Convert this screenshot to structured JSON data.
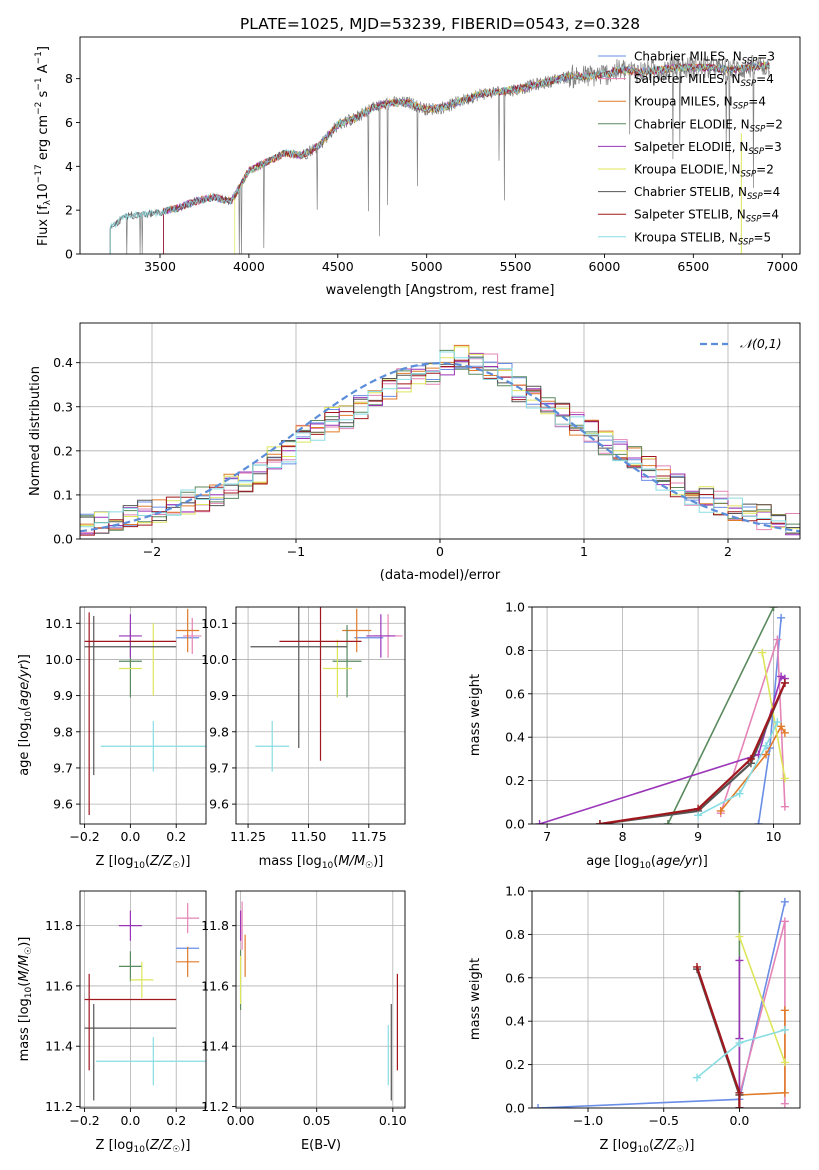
{
  "title": "PLATE=1025, MJD=53239, FIBERID=0543, z=0.328",
  "colors": {
    "Chabrier MILES": "#6a8de6",
    "Salpeter MILES": "#e484b6",
    "Kroupa MILES": "#e07b2a",
    "Chabrier ELODIE": "#5a8a5e",
    "Salpeter ELODIE": "#9b35b8",
    "Kroupa ELODIE": "#dde55a",
    "Chabrier STELIB": "#555555",
    "Salpeter STELIB": "#a0181e",
    "Kroupa STELIB": "#88dde3",
    "normal_curve": "#5b8dd9",
    "spectrum": "#808080"
  },
  "chart_data": [
    {
      "type": "line",
      "title": "PLATE=1025, MJD=53239, FIBERID=0543, z=0.328",
      "xlabel": "wavelength [Angstrom, rest frame]",
      "ylabel": "Flux [f_λ 10^-17 erg cm^-2 s^-1 A^-1]",
      "xlim": [
        3050,
        7100
      ],
      "ylim": [
        0,
        9.9
      ],
      "xticks": [
        3500,
        4000,
        4500,
        5000,
        5500,
        6000,
        6500,
        7000
      ],
      "yticks": [
        0,
        2,
        4,
        6,
        8
      ],
      "legend": [
        {
          "name": "Chabrier MILES",
          "nssp": "3"
        },
        {
          "name": "Salpeter MILES",
          "nssp": "4"
        },
        {
          "name": "Kroupa MILES",
          "nssp": "4"
        },
        {
          "name": "Chabrier ELODIE",
          "nssp": "2"
        },
        {
          "name": "Salpeter ELODIE",
          "nssp": "3"
        },
        {
          "name": "Kroupa ELODIE",
          "nssp": "2"
        },
        {
          "name": "Chabrier STELIB",
          "nssp": "4"
        },
        {
          "name": "Salpeter STELIB",
          "nssp": "4"
        },
        {
          "name": "Kroupa STELIB",
          "nssp": "5"
        }
      ],
      "legend_position": "upper-right",
      "data_x": [
        3220,
        3300,
        3400,
        3500,
        3600,
        3700,
        3800,
        3900,
        4000,
        4100,
        4200,
        4300,
        4400,
        4500,
        4600,
        4700,
        4800,
        4900,
        5000,
        5100,
        5200,
        5300,
        5400,
        5500,
        5600,
        5700,
        5800,
        5900,
        6000,
        6100,
        6200,
        6300,
        6400,
        6500,
        6600,
        6700,
        6800,
        6900,
        7000
      ],
      "data_y": [
        1.2,
        1.7,
        1.8,
        1.9,
        2.1,
        2.4,
        2.6,
        2.4,
        3.8,
        4.2,
        4.6,
        4.5,
        5.0,
        5.9,
        6.2,
        6.7,
        6.9,
        6.9,
        6.6,
        6.7,
        7.0,
        7.3,
        7.4,
        7.5,
        7.7,
        7.9,
        8.1,
        8.1,
        8.2,
        8.4,
        8.3,
        8.4,
        8.5,
        8.5,
        8.5,
        8.4,
        8.5,
        8.6,
        8.5
      ]
    },
    {
      "type": "bar",
      "xlabel": "(data-model)/error",
      "ylabel": "Normed distribution",
      "xlim": [
        -2.5,
        2.5
      ],
      "ylim": [
        0,
        0.49
      ],
      "xticks": [
        -2,
        -1,
        0,
        1,
        2
      ],
      "yticks": [
        0.0,
        0.1,
        0.2,
        0.3,
        0.4
      ],
      "bin_edges_start": -2.5,
      "bin_width": 0.1,
      "grid": true,
      "legend": "𝒩(0,1)",
      "legend_position": "upper-right",
      "series_offsets_note": "",
      "histogram_base": [
        0.03,
        0.035,
        0.045,
        0.05,
        0.06,
        0.065,
        0.07,
        0.085,
        0.09,
        0.1,
        0.12,
        0.13,
        0.15,
        0.18,
        0.2,
        0.23,
        0.25,
        0.27,
        0.28,
        0.3,
        0.32,
        0.34,
        0.36,
        0.37,
        0.38,
        0.4,
        0.41,
        0.4,
        0.39,
        0.37,
        0.34,
        0.32,
        0.3,
        0.28,
        0.26,
        0.24,
        0.22,
        0.2,
        0.18,
        0.16,
        0.14,
        0.12,
        0.1,
        0.09,
        0.08,
        0.07,
        0.06,
        0.05,
        0.04,
        0.035
      ]
    },
    {
      "type": "scatter",
      "xlabel": "Z [log10(Z/Z☉)]",
      "ylabel": "age  [log10(age/yr)]",
      "xlim": [
        -0.22,
        0.33
      ],
      "ylim": [
        9.545,
        10.145
      ],
      "xticks": [
        -0.2,
        0.0,
        0.2
      ],
      "yticks": [
        9.6,
        9.7,
        9.8,
        9.9,
        10.0,
        10.1
      ],
      "points": [
        {
          "series": "Chabrier MILES",
          "x": 0.25,
          "y": 10.06,
          "xerr": 0.05,
          "yerr": 0.0
        },
        {
          "series": "Salpeter MILES",
          "x": 0.27,
          "y": 10.065,
          "xerr": 0.04,
          "yerr": 0.05
        },
        {
          "series": "Kroupa MILES",
          "x": 0.25,
          "y": 10.08,
          "xerr": 0.05,
          "yerr": 0.06
        },
        {
          "series": "Chabrier ELODIE",
          "x": 0.0,
          "y": 9.995,
          "xerr": 0.05,
          "yerr": 0.1
        },
        {
          "series": "Salpeter ELODIE",
          "x": 0.0,
          "y": 10.065,
          "xerr": 0.05,
          "yerr": 0.06
        },
        {
          "series": "Kroupa ELODIE",
          "x": 0.1,
          "y": 10.0,
          "xerr": 0.0,
          "yerr": 0.1
        },
        {
          "series": "Kroupa ELODIE",
          "x": 0.0,
          "y": 9.975,
          "xerr": 0.05,
          "yerr": 0.0
        },
        {
          "series": "Chabrier STELIB",
          "x": 0.0,
          "y": 10.035,
          "xerr": 0.2,
          "yerr": 0.0
        },
        {
          "series": "Chabrier STELIB",
          "x": -0.16,
          "y": 9.9,
          "xerr": 0.0,
          "yerr": 0.22
        },
        {
          "series": "Salpeter STELIB",
          "x": 0.0,
          "y": 10.05,
          "xerr": 0.2,
          "yerr": 0.0
        },
        {
          "series": "Salpeter STELIB",
          "x": -0.18,
          "y": 9.85,
          "xerr": 0.0,
          "yerr": 0.28
        },
        {
          "series": "Kroupa STELIB",
          "x": 0.1,
          "y": 9.76,
          "xerr": 0.23,
          "yerr": 0.07
        }
      ]
    },
    {
      "type": "scatter",
      "xlabel": "mass [log10(M/M☉)]",
      "ylabel": "",
      "xlim": [
        11.2,
        11.9
      ],
      "ylim": [
        9.545,
        10.145
      ],
      "xticks": [
        11.25,
        11.5,
        11.75
      ],
      "yticks": [
        9.6,
        9.7,
        9.8,
        9.9,
        10.0,
        10.1
      ],
      "points": [
        {
          "series": "Chabrier MILES",
          "x": 11.75,
          "y": 10.06,
          "xerr": 0.06,
          "yerr": 0.0
        },
        {
          "series": "Salpeter MILES",
          "x": 11.83,
          "y": 10.065,
          "xerr": 0.06,
          "yerr": 0.06
        },
        {
          "series": "Kroupa MILES",
          "x": 11.7,
          "y": 10.08,
          "xerr": 0.06,
          "yerr": 0.06
        },
        {
          "series": "Chabrier ELODIE",
          "x": 11.66,
          "y": 9.995,
          "xerr": 0.06,
          "yerr": 0.1
        },
        {
          "series": "Salpeter ELODIE",
          "x": 11.8,
          "y": 10.065,
          "xerr": 0.06,
          "yerr": 0.06
        },
        {
          "series": "Kroupa ELODIE",
          "x": 11.62,
          "y": 9.975,
          "xerr": 0.06,
          "yerr": 0.08
        },
        {
          "series": "Chabrier STELIB",
          "x": 11.46,
          "y": 10.035,
          "xerr": 0.2,
          "yerr": 0.28
        },
        {
          "series": "Salpeter STELIB",
          "x": 11.55,
          "y": 10.05,
          "xerr": 0.17,
          "yerr": 0.33
        },
        {
          "series": "Kroupa STELIB",
          "x": 11.35,
          "y": 9.76,
          "xerr": 0.07,
          "yerr": 0.07
        }
      ]
    },
    {
      "type": "line",
      "xlabel": "age  [log10(age/yr)]",
      "ylabel": "mass weight",
      "xlim": [
        6.8,
        10.35
      ],
      "ylim": [
        0,
        1
      ],
      "xticks": [
        7,
        8,
        9,
        10
      ],
      "yticks": [
        0.0,
        0.2,
        0.4,
        0.6,
        0.8,
        1.0
      ],
      "series": [
        {
          "name": "Chabrier MILES",
          "x": [
            9.8,
            9.95,
            10.1
          ],
          "y": [
            0.0,
            0.35,
            0.95
          ]
        },
        {
          "name": "Salpeter MILES",
          "x": [
            9.3,
            10.05,
            10.15
          ],
          "y": [
            0.05,
            0.85,
            0.08
          ]
        },
        {
          "name": "Kroupa MILES",
          "x": [
            9.3,
            9.9,
            10.1,
            10.15
          ],
          "y": [
            0.06,
            0.32,
            0.45,
            0.42
          ]
        },
        {
          "name": "Chabrier ELODIE",
          "x": [
            8.6,
            10.0
          ],
          "y": [
            0.0,
            1.0
          ]
        },
        {
          "name": "Salpeter ELODIE",
          "x": [
            6.9,
            9.8,
            10.1,
            10.15
          ],
          "y": [
            0.0,
            0.32,
            0.68,
            0.67
          ]
        },
        {
          "name": "Kroupa ELODIE",
          "x": [
            9.85,
            10.15
          ],
          "y": [
            0.79,
            0.21
          ]
        },
        {
          "name": "Chabrier STELIB",
          "x": [
            7.7,
            9.0,
            9.7,
            10.15
          ],
          "y": [
            0.0,
            0.06,
            0.28,
            0.65
          ]
        },
        {
          "name": "Salpeter STELIB",
          "x": [
            7.7,
            9.0,
            9.7,
            10.15
          ],
          "y": [
            0.0,
            0.07,
            0.3,
            0.65
          ]
        },
        {
          "name": "Kroupa STELIB",
          "x": [
            9.0,
            9.55,
            9.9,
            10.05
          ],
          "y": [
            0.04,
            0.14,
            0.36,
            0.47
          ]
        }
      ]
    },
    {
      "type": "scatter",
      "xlabel": "Z [log10(Z/Z☉)]",
      "ylabel": "mass [log10(M/M☉)]",
      "xlim": [
        -0.22,
        0.33
      ],
      "ylim": [
        11.195,
        11.915
      ],
      "xticks": [
        -0.2,
        0.0,
        0.2
      ],
      "yticks": [
        11.2,
        11.4,
        11.6,
        11.8
      ],
      "points": [
        {
          "series": "Chabrier MILES",
          "x": 0.25,
          "y": 11.725,
          "xerr": 0.05,
          "yerr": 0.0
        },
        {
          "series": "Salpeter MILES",
          "x": 0.25,
          "y": 11.825,
          "xerr": 0.05,
          "yerr": 0.05
        },
        {
          "series": "Kroupa MILES",
          "x": 0.25,
          "y": 11.68,
          "xerr": 0.05,
          "yerr": 0.05
        },
        {
          "series": "Chabrier ELODIE",
          "x": 0.0,
          "y": 11.665,
          "xerr": 0.05,
          "yerr": 0.05
        },
        {
          "series": "Salpeter ELODIE",
          "x": 0.0,
          "y": 11.8,
          "xerr": 0.05,
          "yerr": 0.05
        },
        {
          "series": "Kroupa ELODIE",
          "x": 0.05,
          "y": 11.62,
          "xerr": 0.05,
          "yerr": 0.06
        },
        {
          "series": "Chabrier STELIB",
          "x": 0.0,
          "y": 11.46,
          "xerr": 0.2,
          "yerr": 0.0
        },
        {
          "series": "Chabrier STELIB",
          "x": -0.16,
          "y": 11.38,
          "xerr": 0.0,
          "yerr": 0.16
        },
        {
          "series": "Salpeter STELIB",
          "x": 0.0,
          "y": 11.555,
          "xerr": 0.2,
          "yerr": 0.0
        },
        {
          "series": "Salpeter STELIB",
          "x": -0.18,
          "y": 11.48,
          "xerr": 0.0,
          "yerr": 0.16
        },
        {
          "series": "Kroupa STELIB",
          "x": 0.1,
          "y": 11.35,
          "xerr": 0.25,
          "yerr": 0.08
        }
      ]
    },
    {
      "type": "scatter",
      "xlabel": "E(B-V)",
      "ylabel": "",
      "xlim": [
        -0.003,
        0.108
      ],
      "ylim": [
        11.195,
        11.915
      ],
      "xticks": [
        0.0,
        0.05,
        0.1
      ],
      "yticks": [
        11.2,
        11.4,
        11.6,
        11.8
      ],
      "points": [
        {
          "series": "Salpeter MILES",
          "x": 0.001,
          "y": 11.8,
          "xerr": 0.0,
          "yerr": 0.08
        },
        {
          "series": "Kroupa MILES",
          "x": 0.003,
          "y": 11.7,
          "xerr": 0.0,
          "yerr": 0.07
        },
        {
          "series": "Salpeter ELODIE",
          "x": 0.0,
          "y": 11.8,
          "xerr": 0.0,
          "yerr": 0.05
        },
        {
          "series": "Chabrier ELODIE",
          "x": 0.0,
          "y": 11.62,
          "xerr": 0.0,
          "yerr": 0.1
        },
        {
          "series": "Kroupa ELODIE",
          "x": 0.0,
          "y": 11.62,
          "xerr": 0.0,
          "yerr": 0.08
        },
        {
          "series": "Kroupa STELIB",
          "x": 0.097,
          "y": 11.37,
          "xerr": 0.0,
          "yerr": 0.1
        },
        {
          "series": "Chabrier STELIB",
          "x": 0.099,
          "y": 11.38,
          "xerr": 0.0,
          "yerr": 0.16
        },
        {
          "series": "Salpeter STELIB",
          "x": 0.103,
          "y": 11.48,
          "xerr": 0.0,
          "yerr": 0.16
        }
      ]
    },
    {
      "type": "line",
      "xlabel": "Z [log10(Z/Z☉)]",
      "ylabel": "mass weight",
      "xlim": [
        -1.37,
        0.4
      ],
      "ylim": [
        0,
        1
      ],
      "xticks": [
        -1.0,
        -0.5,
        0.0
      ],
      "yticks": [
        0.0,
        0.2,
        0.4,
        0.6,
        0.8,
        1.0
      ],
      "series": [
        {
          "name": "Chabrier MILES",
          "x": [
            -1.33,
            0.0,
            0.3
          ],
          "y": [
            0.0,
            0.04,
            0.95
          ]
        },
        {
          "name": "Salpeter MILES",
          "x": [
            0.0,
            0.3,
            0.3
          ],
          "y": [
            0.06,
            0.86,
            0.02
          ]
        },
        {
          "name": "Kroupa MILES",
          "x": [
            0.0,
            0.3,
            0.3
          ],
          "y": [
            0.06,
            0.07,
            0.45
          ]
        },
        {
          "name": "Chabrier ELODIE",
          "x": [
            0.0,
            0.0
          ],
          "y": [
            0.0,
            1.0
          ]
        },
        {
          "name": "Salpeter ELODIE",
          "x": [
            0.0,
            0.0,
            0.0
          ],
          "y": [
            0.0,
            0.32,
            0.68
          ]
        },
        {
          "name": "Kroupa ELODIE",
          "x": [
            0.0,
            0.3
          ],
          "y": [
            0.79,
            0.21
          ]
        },
        {
          "name": "Chabrier STELIB",
          "x": [
            -0.28,
            0.0,
            0.0
          ],
          "y": [
            0.64,
            0.06,
            0.0
          ]
        },
        {
          "name": "Salpeter STELIB",
          "x": [
            -0.28,
            0.0,
            0.0
          ],
          "y": [
            0.65,
            0.07,
            0.0
          ]
        },
        {
          "name": "Kroupa STELIB",
          "x": [
            -0.28,
            0.0,
            0.3
          ],
          "y": [
            0.14,
            0.3,
            0.36
          ]
        }
      ]
    }
  ]
}
